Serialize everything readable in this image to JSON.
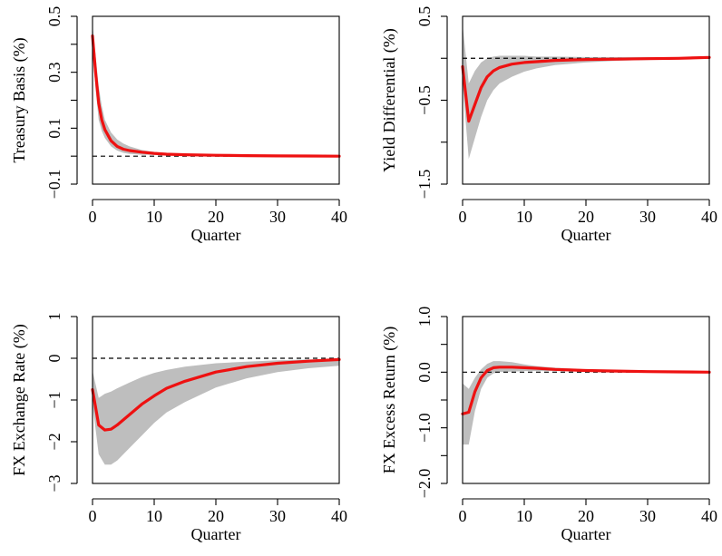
{
  "chart_data": [
    {
      "type": "line",
      "xlabel": "Quarter",
      "ylabel": "Treasury Basis (%)",
      "xlim": [
        0,
        40
      ],
      "ylim": [
        -0.1,
        0.5
      ],
      "xticks": [
        0,
        10,
        20,
        30,
        40
      ],
      "xtick_labels": [
        "0",
        "10",
        "20",
        "30",
        "40"
      ],
      "yticks": [
        -0.1,
        0.1,
        0.3,
        0.5
      ],
      "ytick_labels": [
        "−0.1",
        "0.1",
        "0.3",
        "0.5"
      ],
      "minor_yticks": [
        0.0,
        0.2,
        0.4
      ],
      "reference_line": 0,
      "colors": {
        "line": "#ee1111",
        "band": "#bebebe"
      },
      "x": [
        0,
        0.5,
        1,
        1.5,
        2,
        3,
        4,
        5,
        6,
        8,
        10,
        12,
        15,
        20,
        25,
        30,
        35,
        40
      ],
      "y": [
        0.43,
        0.3,
        0.19,
        0.13,
        0.095,
        0.055,
        0.035,
        0.025,
        0.02,
        0.014,
        0.01,
        0.007,
        0.005,
        0.003,
        0.002,
        0.001,
        0.0005,
        0
      ],
      "upper": [
        0.47,
        0.36,
        0.25,
        0.18,
        0.13,
        0.085,
        0.06,
        0.045,
        0.035,
        0.022,
        0.015,
        0.011,
        0.008,
        0.005,
        0.003,
        0.002,
        0.001,
        0
      ],
      "lower": [
        0.38,
        0.24,
        0.13,
        0.09,
        0.065,
        0.035,
        0.02,
        0.012,
        0.008,
        0.005,
        0.004,
        0.003,
        0.002,
        0.001,
        0.001,
        0.0005,
        0.0002,
        0
      ]
    },
    {
      "type": "line",
      "xlabel": "Quarter",
      "ylabel": "Yield Differential (%)",
      "xlim": [
        0,
        40
      ],
      "ylim": [
        -1.5,
        0.5
      ],
      "xticks": [
        0,
        10,
        20,
        30,
        40
      ],
      "xtick_labels": [
        "0",
        "10",
        "20",
        "30",
        "40"
      ],
      "yticks": [
        -1.5,
        -0.5,
        0.5
      ],
      "ytick_labels": [
        "−1.5",
        "−0.5",
        "0.5"
      ],
      "minor_yticks": [
        -1.0,
        0.0
      ],
      "reference_line": 0,
      "colors": {
        "line": "#ee1111",
        "band": "#bebebe"
      },
      "x": [
        0,
        1,
        2,
        3,
        4,
        5,
        6,
        8,
        10,
        12,
        15,
        20,
        25,
        30,
        35,
        40
      ],
      "y": [
        -0.1,
        -0.75,
        -0.55,
        -0.35,
        -0.22,
        -0.15,
        -0.11,
        -0.07,
        -0.05,
        -0.04,
        -0.025,
        -0.015,
        -0.01,
        -0.005,
        0,
        0.01
      ],
      "upper": [
        0.4,
        -0.3,
        -0.15,
        -0.05,
        0.0,
        0.02,
        0.03,
        0.03,
        0.03,
        0.02,
        0.02,
        0.015,
        0.015,
        0.015,
        0.01,
        0.015
      ],
      "lower": [
        -0.3,
        -1.2,
        -0.95,
        -0.7,
        -0.5,
        -0.38,
        -0.3,
        -0.22,
        -0.16,
        -0.12,
        -0.08,
        -0.05,
        -0.03,
        -0.02,
        -0.01,
        0
      ]
    },
    {
      "type": "line",
      "xlabel": "Quarter",
      "ylabel": "FX Exchange Rate (%)",
      "xlim": [
        0,
        40
      ],
      "ylim": [
        -3,
        1
      ],
      "xticks": [
        0,
        10,
        20,
        30,
        40
      ],
      "xtick_labels": [
        "0",
        "10",
        "20",
        "30",
        "40"
      ],
      "yticks": [
        -3,
        -2,
        -1,
        0,
        1
      ],
      "ytick_labels": [
        "−3",
        "−2",
        "−1",
        "0",
        "1"
      ],
      "minor_yticks": [],
      "reference_line": 0,
      "colors": {
        "line": "#ee1111",
        "band": "#bebebe"
      },
      "x": [
        0,
        1,
        2,
        3,
        4,
        6,
        8,
        10,
        12,
        15,
        20,
        25,
        30,
        35,
        40
      ],
      "y": [
        -0.75,
        -1.6,
        -1.72,
        -1.7,
        -1.6,
        -1.35,
        -1.1,
        -0.9,
        -0.72,
        -0.55,
        -0.33,
        -0.2,
        -0.12,
        -0.07,
        -0.03
      ],
      "upper": [
        -0.3,
        -0.95,
        -0.85,
        -0.8,
        -0.72,
        -0.58,
        -0.45,
        -0.35,
        -0.28,
        -0.2,
        -0.12,
        -0.08,
        -0.05,
        -0.03,
        -0.02
      ],
      "lower": [
        -1.1,
        -2.3,
        -2.55,
        -2.55,
        -2.45,
        -2.15,
        -1.85,
        -1.55,
        -1.3,
        -1.05,
        -0.7,
        -0.48,
        -0.33,
        -0.24,
        -0.18
      ]
    },
    {
      "type": "line",
      "xlabel": "Quarter",
      "ylabel": "FX Excess Return (%)",
      "xlim": [
        0,
        40
      ],
      "ylim": [
        -2.0,
        1.0
      ],
      "xticks": [
        0,
        10,
        20,
        30,
        40
      ],
      "xtick_labels": [
        "0",
        "10",
        "20",
        "30",
        "40"
      ],
      "yticks": [
        -2.0,
        -1.0,
        0.0,
        1.0
      ],
      "ytick_labels": [
        "−2.0",
        "−1.0",
        "0.0",
        "1.0"
      ],
      "minor_yticks": [
        -1.5,
        -0.5,
        0.5
      ],
      "reference_line": 0,
      "colors": {
        "line": "#ee1111",
        "band": "#bebebe"
      },
      "x": [
        0,
        1,
        2,
        3,
        4,
        5,
        6,
        8,
        10,
        12,
        15,
        20,
        25,
        30,
        35,
        40
      ],
      "y": [
        -0.75,
        -0.72,
        -0.35,
        -0.1,
        0.03,
        0.08,
        0.09,
        0.09,
        0.08,
        0.07,
        0.05,
        0.03,
        0.02,
        0.01,
        0.005,
        0
      ],
      "upper": [
        -0.2,
        -0.3,
        -0.1,
        0.05,
        0.15,
        0.2,
        0.2,
        0.18,
        0.14,
        0.11,
        0.08,
        0.05,
        0.03,
        0.02,
        0.01,
        0.005
      ],
      "lower": [
        -1.3,
        -1.3,
        -0.7,
        -0.3,
        -0.1,
        -0.02,
        0.0,
        0.01,
        0.02,
        0.02,
        0.02,
        0.01,
        0.005,
        0,
        0,
        0
      ]
    }
  ]
}
